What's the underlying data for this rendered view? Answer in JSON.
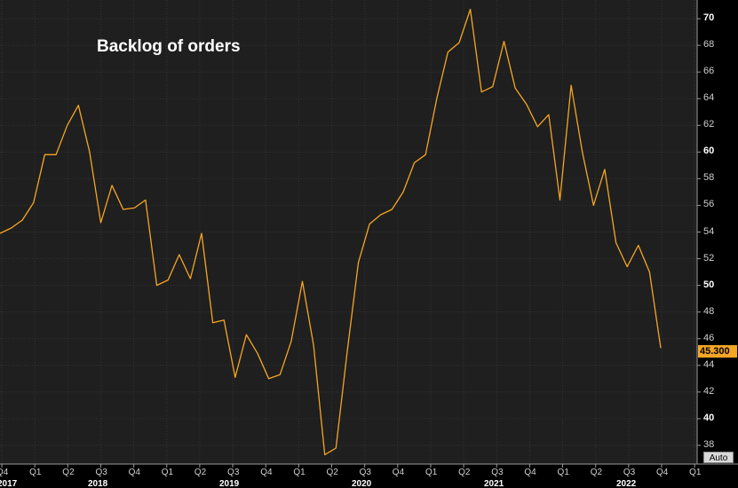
{
  "chart_data": {
    "type": "line",
    "title": "Backlog of orders",
    "xlabel": "",
    "ylabel": "",
    "ylim": [
      36.6,
      71.4
    ],
    "y_ticks": [
      38,
      40,
      42,
      44,
      46,
      48,
      50,
      52,
      54,
      56,
      58,
      60,
      62,
      64,
      66,
      68,
      70
    ],
    "y_major_ticks": [
      40,
      50,
      60,
      70
    ],
    "last_value_label": "45.300",
    "auto_label": "Auto",
    "grid": true,
    "line_color": "#f5a623",
    "x_quarter_ticks": [
      "Q4",
      "Q1",
      "Q2",
      "Q3",
      "Q4",
      "Q1",
      "Q2",
      "Q3",
      "Q4",
      "Q1",
      "Q2",
      "Q3",
      "Q4",
      "Q1",
      "Q2",
      "Q3",
      "Q4",
      "Q1",
      "Q2",
      "Q3",
      "Q4",
      "Q1"
    ],
    "x_year_labels": [
      "2017",
      "2018",
      "2019",
      "2020",
      "2021",
      "2022"
    ],
    "series": [
      {
        "values": [
          53.9,
          54.3,
          54.9,
          56.2,
          59.8,
          59.8,
          62.0,
          63.5,
          60.0,
          54.7,
          57.5,
          55.7,
          55.8,
          56.4,
          50.0,
          50.4,
          52.3,
          50.5,
          53.9,
          47.2,
          47.4,
          43.1,
          46.3,
          44.9,
          43.0,
          43.3,
          45.8,
          50.3,
          45.5,
          37.3,
          37.8,
          45.0,
          51.7,
          54.6,
          55.3,
          55.7,
          57.0,
          59.2,
          59.8,
          64.0,
          67.5,
          68.2,
          70.7,
          64.5,
          64.9,
          68.3,
          64.8,
          63.6,
          61.9,
          62.8,
          56.4,
          65.0,
          60.0,
          56.0,
          58.7,
          53.2,
          51.4,
          53.0,
          51.0,
          45.3
        ]
      }
    ]
  }
}
